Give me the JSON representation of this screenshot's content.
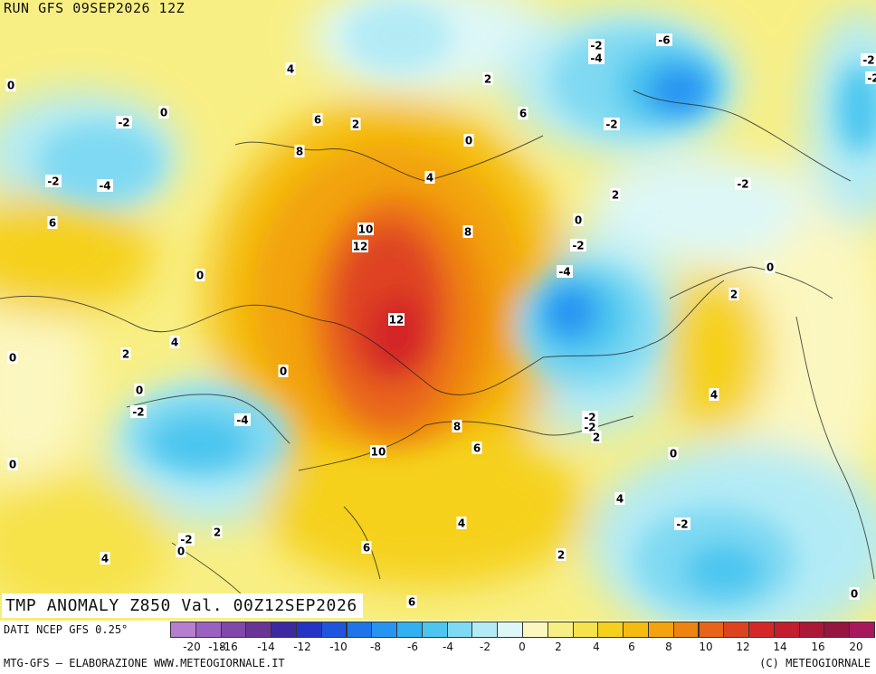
{
  "header": {
    "run_label": "RUN GFS 09SEP2026 12Z"
  },
  "title": "TMP ANOMALY Z850 Val. 00Z12SEP2026",
  "footer": {
    "source": "DATI NCEP GFS 0.25°",
    "credit": "MTG-GFS – ELABORAZIONE WWW.METEOGIORNALE.IT",
    "copyright": "(C) METEOGIORNALE"
  },
  "legend": {
    "colors": [
      "#b57fd0",
      "#9a62c0",
      "#8048a8",
      "#6a3496",
      "#3e2aa0",
      "#2434c4",
      "#1f55de",
      "#1f74ea",
      "#2794f2",
      "#32b0f2",
      "#4cc6ef",
      "#7fd9f2",
      "#b3ebf5",
      "#ddf7f7",
      "#fbf7c0",
      "#f8ef84",
      "#f6e24a",
      "#f5d11e",
      "#f4bb10",
      "#f2a30e",
      "#ee8410",
      "#e8641a",
      "#de4320",
      "#d42828",
      "#c21e2e",
      "#ac1838",
      "#961640",
      "#a8185c"
    ],
    "ticks": [
      "-20",
      "-18",
      "-16",
      "-14",
      "-12",
      "-10",
      "-8",
      "-6",
      "-4",
      "-2",
      "0",
      "2",
      "4",
      "6",
      "8",
      "10",
      "12",
      "14",
      "16",
      "20"
    ]
  },
  "map_labels": [
    {
      "text": "4"
    },
    {
      "text": "2"
    },
    {
      "text": "6"
    },
    {
      "text": "2"
    },
    {
      "text": "8"
    },
    {
      "text": "0"
    },
    {
      "text": "4"
    },
    {
      "text": "6"
    },
    {
      "text": "0"
    },
    {
      "text": "-2"
    },
    {
      "text": "0"
    },
    {
      "text": "-2"
    },
    {
      "text": "-4"
    },
    {
      "text": "6"
    },
    {
      "text": "0"
    },
    {
      "text": "10"
    },
    {
      "text": "12"
    },
    {
      "text": "8"
    },
    {
      "text": "12"
    },
    {
      "text": "10"
    },
    {
      "text": "8"
    },
    {
      "text": "6"
    },
    {
      "text": "2"
    },
    {
      "text": "4"
    },
    {
      "text": "0"
    },
    {
      "text": "-2"
    },
    {
      "text": "0"
    },
    {
      "text": "-4"
    },
    {
      "text": "0"
    },
    {
      "text": "-2"
    },
    {
      "text": "0"
    },
    {
      "text": "2"
    },
    {
      "text": "4"
    },
    {
      "text": "-2"
    },
    {
      "text": "-4"
    },
    {
      "text": "-6"
    },
    {
      "text": "-2"
    },
    {
      "text": "-2"
    },
    {
      "text": "2"
    },
    {
      "text": "0"
    },
    {
      "text": "-2"
    },
    {
      "text": "-4"
    },
    {
      "text": "0"
    },
    {
      "text": "2"
    },
    {
      "text": "-2"
    },
    {
      "text": "-2"
    },
    {
      "text": "2"
    },
    {
      "text": "4"
    },
    {
      "text": "0"
    },
    {
      "text": "4"
    },
    {
      "text": "-2"
    },
    {
      "text": "2"
    },
    {
      "text": "0"
    },
    {
      "text": "6"
    },
    {
      "text": "0"
    },
    {
      "text": "4"
    },
    {
      "text": "6"
    },
    {
      "text": "-2"
    },
    {
      "text": "-2"
    }
  ]
}
